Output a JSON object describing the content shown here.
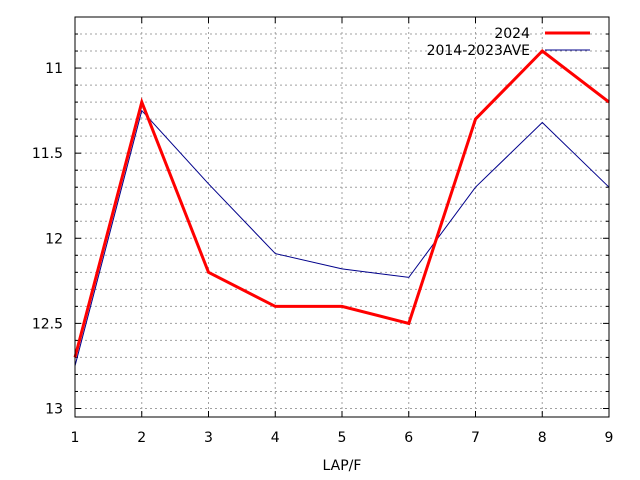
{
  "chart_data": {
    "type": "line",
    "xlabel": "LAP/F",
    "ylabel": "",
    "title": "",
    "x": [
      1,
      2,
      3,
      4,
      5,
      6,
      7,
      8,
      9
    ],
    "xlim": [
      1,
      9
    ],
    "ylim": [
      13.05,
      10.7
    ],
    "y_inverted": true,
    "x_ticks": [
      "1",
      "2",
      "3",
      "4",
      "5",
      "6",
      "7",
      "8",
      "9"
    ],
    "y_ticks": [
      {
        "value": 11,
        "label": "11"
      },
      {
        "value": 11.5,
        "label": "11.5"
      },
      {
        "value": 12,
        "label": "12"
      },
      {
        "value": 12.5,
        "label": "12.5"
      },
      {
        "value": 13,
        "label": "13"
      }
    ],
    "grid": true,
    "legend_position": "top-right",
    "series": [
      {
        "name": "2024",
        "color": "#ff0000",
        "values": [
          12.7,
          11.2,
          12.2,
          12.4,
          12.4,
          12.5,
          11.3,
          10.9,
          11.2
        ]
      },
      {
        "name": "2014-2023AVE",
        "color": "#00008b",
        "values": [
          12.75,
          11.25,
          11.68,
          12.09,
          12.18,
          12.23,
          11.7,
          11.32,
          11.7
        ]
      }
    ]
  }
}
